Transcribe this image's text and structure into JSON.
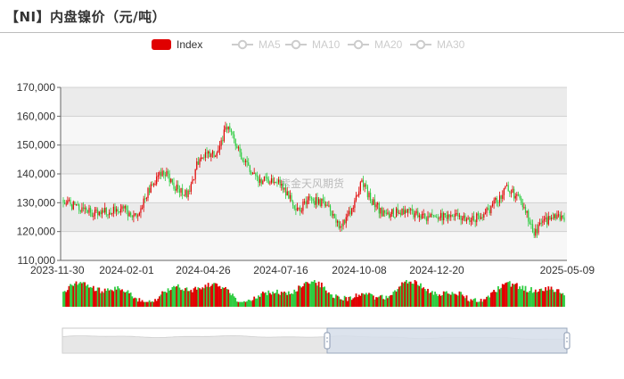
{
  "header": {
    "title": "【NI】内盘镍价（元/吨）"
  },
  "watermark": "紫金天风期货",
  "legend": [
    {
      "label": "Index",
      "color": "#e00000",
      "active": true
    },
    {
      "label": "MA5",
      "color": "#cccccc",
      "active": false
    },
    {
      "label": "MA10",
      "color": "#cccccc",
      "active": false
    },
    {
      "label": "MA20",
      "color": "#cccccc",
      "active": false
    },
    {
      "label": "MA30",
      "color": "#cccccc",
      "active": false
    }
  ],
  "colors": {
    "up": "#e00000",
    "down": "#2ecc40",
    "band_dark": "#ebebeb",
    "band_light": "#f7f7f7",
    "grid": "#d0d0d0",
    "slider_fill": "#d6deea",
    "slider_border": "#9aa8bd"
  },
  "chart_data": {
    "type": "candlestick",
    "ylim": [
      110000,
      170000
    ],
    "ytick_labels": [
      "110,000",
      "120,000",
      "130,000",
      "140,000",
      "150,000",
      "160,000",
      "170,000"
    ],
    "ytick_values": [
      110000,
      120000,
      130000,
      140000,
      150000,
      160000,
      170000
    ],
    "xtick_labels": [
      "2023-11-30",
      "2024-02-01",
      "2024-04-26",
      "2024-07-16",
      "2024-10-08",
      "2024-12-20",
      "2025-05-09"
    ],
    "price_path": [
      [
        "2023-11-30",
        131000
      ],
      [
        "2023-12-15",
        128000
      ],
      [
        "2024-01-05",
        126000
      ],
      [
        "2024-01-20",
        127500
      ],
      [
        "2024-02-01",
        128000
      ],
      [
        "2024-02-15",
        125000
      ],
      [
        "2024-03-01",
        136000
      ],
      [
        "2024-03-15",
        141000
      ],
      [
        "2024-03-28",
        135000
      ],
      [
        "2024-04-10",
        133000
      ],
      [
        "2024-04-18",
        143000
      ],
      [
        "2024-04-26",
        146000
      ],
      [
        "2024-05-10",
        148000
      ],
      [
        "2024-05-20",
        157000
      ],
      [
        "2024-05-28",
        152000
      ],
      [
        "2024-06-05",
        145000
      ],
      [
        "2024-06-20",
        138000
      ],
      [
        "2024-07-05",
        137000
      ],
      [
        "2024-07-16",
        137000
      ],
      [
        "2024-08-01",
        127000
      ],
      [
        "2024-08-15",
        131000
      ],
      [
        "2024-09-01",
        130000
      ],
      [
        "2024-09-15",
        122000
      ],
      [
        "2024-09-25",
        126000
      ],
      [
        "2024-10-08",
        137000
      ],
      [
        "2024-10-20",
        130000
      ],
      [
        "2024-11-01",
        126000
      ],
      [
        "2024-11-20",
        127000
      ],
      [
        "2024-12-05",
        126000
      ],
      [
        "2024-12-20",
        124500
      ],
      [
        "2025-01-10",
        126000
      ],
      [
        "2025-02-01",
        124000
      ],
      [
        "2025-02-20",
        128000
      ],
      [
        "2025-03-10",
        135000
      ],
      [
        "2025-03-25",
        131000
      ],
      [
        "2025-04-07",
        120000
      ],
      [
        "2025-04-15",
        122000
      ],
      [
        "2025-04-25",
        125500
      ],
      [
        "2025-05-09",
        124000
      ]
    ]
  }
}
